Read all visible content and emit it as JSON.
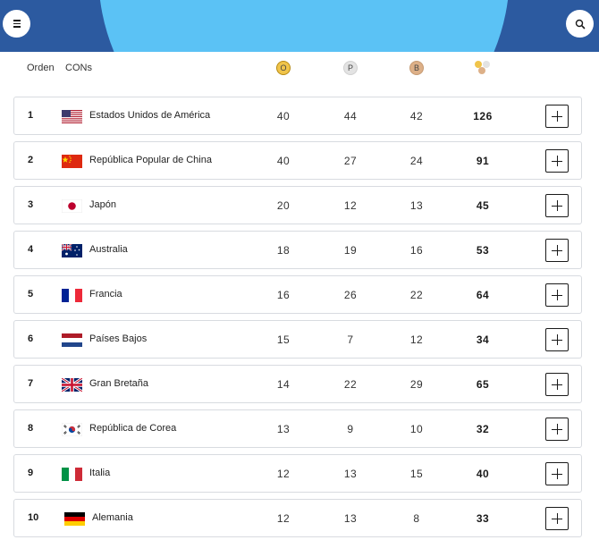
{
  "header": {
    "menu_icon": "menu-icon",
    "search_icon": "search-icon",
    "colors": {
      "bar": "#2c5aa0",
      "arc": "#5bc2f5"
    }
  },
  "columns": {
    "order": "Orden",
    "cons": "CONs",
    "gold": "O",
    "silver": "P",
    "bronze": "B",
    "total_icon": "total-medals-icon"
  },
  "rows": [
    {
      "rank": "1",
      "country": "Estados Unidos de América",
      "flag": "usa-flag",
      "gold": "40",
      "silver": "44",
      "bronze": "42",
      "total": "126"
    },
    {
      "rank": "2",
      "country": "República Popular de China",
      "flag": "china-flag",
      "gold": "40",
      "silver": "27",
      "bronze": "24",
      "total": "91"
    },
    {
      "rank": "3",
      "country": "Japón",
      "flag": "japan-flag",
      "gold": "20",
      "silver": "12",
      "bronze": "13",
      "total": "45"
    },
    {
      "rank": "4",
      "country": "Australia",
      "flag": "australia-flag",
      "gold": "18",
      "silver": "19",
      "bronze": "16",
      "total": "53"
    },
    {
      "rank": "5",
      "country": "Francia",
      "flag": "france-flag",
      "gold": "16",
      "silver": "26",
      "bronze": "22",
      "total": "64"
    },
    {
      "rank": "6",
      "country": "Países Bajos",
      "flag": "netherlands-flag",
      "gold": "15",
      "silver": "7",
      "bronze": "12",
      "total": "34"
    },
    {
      "rank": "7",
      "country": "Gran Bretaña",
      "flag": "great-britain-flag",
      "gold": "14",
      "silver": "22",
      "bronze": "29",
      "total": "65"
    },
    {
      "rank": "8",
      "country": "República de Corea",
      "flag": "korea-flag",
      "gold": "13",
      "silver": "9",
      "bronze": "10",
      "total": "32"
    },
    {
      "rank": "9",
      "country": "Italia",
      "flag": "italy-flag",
      "gold": "12",
      "silver": "13",
      "bronze": "15",
      "total": "40"
    },
    {
      "rank": "10",
      "country": "Alemania",
      "flag": "germany-flag",
      "gold": "12",
      "silver": "13",
      "bronze": "8",
      "total": "33"
    }
  ],
  "medal_colors": {
    "gold": "#f0c44a",
    "silver": "#e3e3e3",
    "bronze": "#ddb088"
  }
}
